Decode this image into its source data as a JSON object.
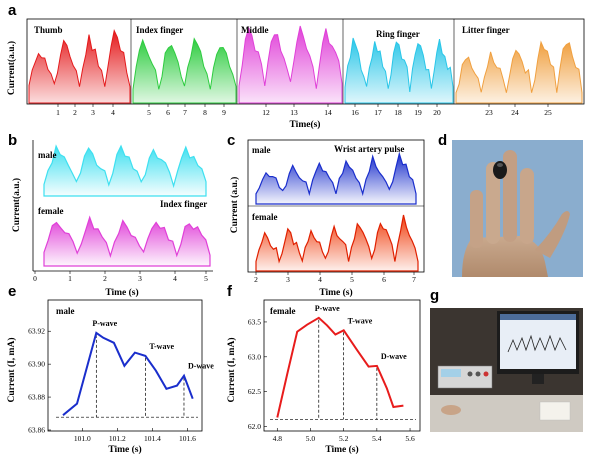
{
  "panels": {
    "a": "a",
    "b": "b",
    "c": "c",
    "d": "d",
    "e": "e",
    "f": "f",
    "g": "g"
  },
  "colors": {
    "thumb": "#e41a1c",
    "index": "#2ecc40",
    "middle": "#e040d8",
    "ring": "#29c6e8",
    "little": "#f0a040",
    "cyan": "#3ee0f0",
    "magenta": "#e040d8",
    "blue": "#1a2ecc",
    "red": "#f04010",
    "ecg_blue": "#1a2ecc",
    "ecg_red": "#e81c1c"
  },
  "panel_a": {
    "ylabel": "Current(a.u.)",
    "xlabel": "Time(s)",
    "segment_labels": [
      "Thumb",
      "Index finger",
      "Middle",
      "Ring finger",
      "Litter finger"
    ],
    "xticks": [
      "1",
      "2",
      "3",
      "4",
      "5",
      "6",
      "7",
      "8",
      "9",
      "12",
      "13",
      "14",
      "16",
      "17",
      "18",
      "19",
      "20",
      "23",
      "24",
      "25"
    ]
  },
  "panel_b": {
    "ylabel": "Current(a.u.)",
    "xlabel": "Time (s)",
    "labels": {
      "male": "male",
      "female": "female",
      "site": "Index finger"
    },
    "xticks": [
      "0",
      "1",
      "2",
      "3",
      "4",
      "5"
    ]
  },
  "panel_c": {
    "ylabel": "Current (a.u.)",
    "xlabel": "Time (s)",
    "labels": {
      "male": "male",
      "female": "female",
      "site": "Wrist artery pulse"
    },
    "xticks": [
      "2",
      "3",
      "4",
      "5",
      "6",
      "7"
    ]
  },
  "chart_data": [
    {
      "panel": "e",
      "type": "line",
      "title": "male",
      "xlabel": "Time (s)",
      "ylabel": "Current (I, mA)",
      "xlim": [
        100.85,
        100.65
      ],
      "ylim": [
        63.86,
        63.925
      ],
      "xticks": [
        "101.0",
        "101.2",
        "101.4",
        "101.6"
      ],
      "yticks": [
        "63.86",
        "63.88",
        "63.90",
        "63.92"
      ],
      "x": [
        100.89,
        100.97,
        101.08,
        101.12,
        101.18,
        101.24,
        101.3,
        101.36,
        101.42,
        101.48,
        101.54,
        101.58,
        101.63
      ],
      "y": [
        63.869,
        63.876,
        63.919,
        63.916,
        63.913,
        63.899,
        63.907,
        63.905,
        63.896,
        63.885,
        63.887,
        63.893,
        63.879
      ],
      "annotations": [
        {
          "text": "P-wave",
          "x": 101.08
        },
        {
          "text": "T-wave",
          "x": 101.36
        },
        {
          "text": "D-wave",
          "x": 101.58
        }
      ]
    },
    {
      "panel": "f",
      "type": "line",
      "title": "female",
      "xlabel": "Time (s)",
      "ylabel": "Current (I, mA)",
      "xlim": [
        4.72,
        5.66
      ],
      "ylim": [
        61.95,
        63.7
      ],
      "xticks": [
        "4.8",
        "5.0",
        "5.2",
        "5.4",
        "5.6"
      ],
      "yticks": [
        "62.0",
        "62.5",
        "63.0",
        "63.5"
      ],
      "x": [
        4.8,
        4.86,
        4.92,
        4.98,
        5.05,
        5.1,
        5.15,
        5.2,
        5.28,
        5.35,
        5.4,
        5.46,
        5.5,
        5.56
      ],
      "y": [
        62.13,
        62.75,
        63.36,
        63.46,
        63.56,
        63.45,
        63.32,
        63.38,
        63.1,
        62.86,
        62.87,
        62.55,
        62.28,
        62.3
      ],
      "annotations": [
        {
          "text": "P-wave",
          "x": 5.05
        },
        {
          "text": "T-wave",
          "x": 5.2
        },
        {
          "text": "D-wave",
          "x": 5.4
        }
      ]
    }
  ]
}
